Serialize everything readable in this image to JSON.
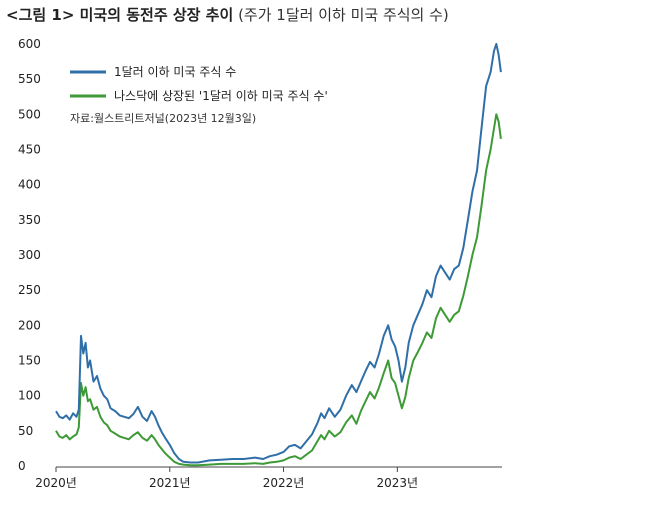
{
  "header": {
    "title": "<그림 1> 미국의 동전주 상장 추이",
    "subtitle": "(주가 1달러 이하 미국 주식의 수)"
  },
  "chart_data": {
    "type": "line",
    "title": "<그림 1> 미국의 동전주 상장 추이",
    "subtitle": "(주가 1달러 이하 미국 주식의 수)",
    "source": "자료:월스트리트저널(2023년 12월3일)",
    "xlabel": "",
    "ylabel": "",
    "ylim": [
      0,
      600
    ],
    "yticks": [
      0,
      50,
      100,
      150,
      200,
      250,
      300,
      350,
      400,
      450,
      500,
      550,
      600
    ],
    "xlim": [
      2020.0,
      2023.92
    ],
    "xticks": [
      {
        "value": 2020.0,
        "label": "2020년"
      },
      {
        "value": 2021.0,
        "label": "2021년"
      },
      {
        "value": 2022.0,
        "label": "2022년"
      },
      {
        "value": 2023.0,
        "label": "2023년"
      }
    ],
    "grid": false,
    "legend_position": "top-left",
    "series": [
      {
        "name": "1달러 이하 미국 주식 수",
        "color": "#2f6fa8",
        "points": [
          [
            2020.0,
            78
          ],
          [
            2020.03,
            70
          ],
          [
            2020.06,
            68
          ],
          [
            2020.09,
            72
          ],
          [
            2020.12,
            66
          ],
          [
            2020.15,
            75
          ],
          [
            2020.18,
            70
          ],
          [
            2020.2,
            80
          ],
          [
            2020.22,
            185
          ],
          [
            2020.24,
            160
          ],
          [
            2020.26,
            175
          ],
          [
            2020.28,
            140
          ],
          [
            2020.3,
            150
          ],
          [
            2020.33,
            120
          ],
          [
            2020.36,
            128
          ],
          [
            2020.39,
            110
          ],
          [
            2020.42,
            100
          ],
          [
            2020.45,
            95
          ],
          [
            2020.48,
            82
          ],
          [
            2020.52,
            78
          ],
          [
            2020.56,
            72
          ],
          [
            2020.6,
            70
          ],
          [
            2020.64,
            68
          ],
          [
            2020.68,
            74
          ],
          [
            2020.72,
            84
          ],
          [
            2020.76,
            70
          ],
          [
            2020.8,
            64
          ],
          [
            2020.84,
            78
          ],
          [
            2020.87,
            70
          ],
          [
            2020.9,
            58
          ],
          [
            2020.93,
            48
          ],
          [
            2020.96,
            40
          ],
          [
            2021.0,
            30
          ],
          [
            2021.04,
            18
          ],
          [
            2021.08,
            10
          ],
          [
            2021.12,
            6
          ],
          [
            2021.18,
            5
          ],
          [
            2021.25,
            5
          ],
          [
            2021.35,
            8
          ],
          [
            2021.45,
            9
          ],
          [
            2021.55,
            10
          ],
          [
            2021.65,
            10
          ],
          [
            2021.75,
            12
          ],
          [
            2021.82,
            10
          ],
          [
            2021.88,
            14
          ],
          [
            2021.94,
            16
          ],
          [
            2022.0,
            20
          ],
          [
            2022.05,
            28
          ],
          [
            2022.1,
            30
          ],
          [
            2022.15,
            25
          ],
          [
            2022.2,
            35
          ],
          [
            2022.25,
            45
          ],
          [
            2022.3,
            62
          ],
          [
            2022.33,
            75
          ],
          [
            2022.36,
            68
          ],
          [
            2022.4,
            82
          ],
          [
            2022.45,
            70
          ],
          [
            2022.5,
            80
          ],
          [
            2022.55,
            100
          ],
          [
            2022.6,
            115
          ],
          [
            2022.64,
            105
          ],
          [
            2022.68,
            120
          ],
          [
            2022.72,
            135
          ],
          [
            2022.76,
            148
          ],
          [
            2022.8,
            140
          ],
          [
            2022.84,
            160
          ],
          [
            2022.88,
            185
          ],
          [
            2022.92,
            200
          ],
          [
            2022.95,
            180
          ],
          [
            2022.98,
            170
          ],
          [
            2023.01,
            150
          ],
          [
            2023.04,
            120
          ],
          [
            2023.07,
            140
          ],
          [
            2023.1,
            175
          ],
          [
            2023.14,
            200
          ],
          [
            2023.18,
            215
          ],
          [
            2023.22,
            230
          ],
          [
            2023.26,
            250
          ],
          [
            2023.3,
            240
          ],
          [
            2023.34,
            270
          ],
          [
            2023.38,
            285
          ],
          [
            2023.42,
            275
          ],
          [
            2023.46,
            265
          ],
          [
            2023.5,
            280
          ],
          [
            2023.54,
            285
          ],
          [
            2023.58,
            310
          ],
          [
            2023.62,
            350
          ],
          [
            2023.66,
            390
          ],
          [
            2023.7,
            420
          ],
          [
            2023.74,
            480
          ],
          [
            2023.78,
            540
          ],
          [
            2023.82,
            560
          ],
          [
            2023.85,
            590
          ],
          [
            2023.87,
            600
          ],
          [
            2023.89,
            585
          ],
          [
            2023.91,
            560
          ]
        ]
      },
      {
        "name": "나스닥에 상장된 '1달러 이하 미국 주식 수'",
        "color": "#3e9a36",
        "points": [
          [
            2020.0,
            50
          ],
          [
            2020.03,
            42
          ],
          [
            2020.06,
            40
          ],
          [
            2020.09,
            44
          ],
          [
            2020.12,
            38
          ],
          [
            2020.15,
            42
          ],
          [
            2020.18,
            45
          ],
          [
            2020.2,
            55
          ],
          [
            2020.22,
            118
          ],
          [
            2020.24,
            100
          ],
          [
            2020.26,
            112
          ],
          [
            2020.28,
            92
          ],
          [
            2020.3,
            95
          ],
          [
            2020.33,
            80
          ],
          [
            2020.36,
            84
          ],
          [
            2020.39,
            70
          ],
          [
            2020.42,
            62
          ],
          [
            2020.45,
            58
          ],
          [
            2020.48,
            50
          ],
          [
            2020.52,
            46
          ],
          [
            2020.56,
            42
          ],
          [
            2020.6,
            40
          ],
          [
            2020.64,
            38
          ],
          [
            2020.68,
            44
          ],
          [
            2020.72,
            48
          ],
          [
            2020.76,
            40
          ],
          [
            2020.8,
            36
          ],
          [
            2020.84,
            44
          ],
          [
            2020.87,
            38
          ],
          [
            2020.9,
            30
          ],
          [
            2020.93,
            24
          ],
          [
            2020.96,
            18
          ],
          [
            2021.0,
            12
          ],
          [
            2021.04,
            6
          ],
          [
            2021.08,
            3
          ],
          [
            2021.12,
            2
          ],
          [
            2021.18,
            1
          ],
          [
            2021.25,
            1
          ],
          [
            2021.35,
            2
          ],
          [
            2021.45,
            3
          ],
          [
            2021.55,
            3
          ],
          [
            2021.65,
            3
          ],
          [
            2021.75,
            4
          ],
          [
            2021.82,
            3
          ],
          [
            2021.88,
            5
          ],
          [
            2021.94,
            6
          ],
          [
            2022.0,
            8
          ],
          [
            2022.05,
            12
          ],
          [
            2022.1,
            14
          ],
          [
            2022.15,
            10
          ],
          [
            2022.2,
            16
          ],
          [
            2022.25,
            22
          ],
          [
            2022.3,
            36
          ],
          [
            2022.33,
            44
          ],
          [
            2022.36,
            38
          ],
          [
            2022.4,
            50
          ],
          [
            2022.45,
            42
          ],
          [
            2022.5,
            48
          ],
          [
            2022.55,
            62
          ],
          [
            2022.6,
            72
          ],
          [
            2022.64,
            60
          ],
          [
            2022.68,
            78
          ],
          [
            2022.72,
            92
          ],
          [
            2022.76,
            105
          ],
          [
            2022.8,
            96
          ],
          [
            2022.84,
            112
          ],
          [
            2022.88,
            132
          ],
          [
            2022.92,
            150
          ],
          [
            2022.95,
            125
          ],
          [
            2022.98,
            118
          ],
          [
            2023.01,
            100
          ],
          [
            2023.04,
            82
          ],
          [
            2023.07,
            98
          ],
          [
            2023.1,
            125
          ],
          [
            2023.14,
            150
          ],
          [
            2023.18,
            162
          ],
          [
            2023.22,
            175
          ],
          [
            2023.26,
            190
          ],
          [
            2023.3,
            182
          ],
          [
            2023.34,
            210
          ],
          [
            2023.38,
            225
          ],
          [
            2023.42,
            215
          ],
          [
            2023.46,
            205
          ],
          [
            2023.5,
            215
          ],
          [
            2023.54,
            220
          ],
          [
            2023.58,
            242
          ],
          [
            2023.62,
            270
          ],
          [
            2023.66,
            300
          ],
          [
            2023.7,
            325
          ],
          [
            2023.74,
            370
          ],
          [
            2023.78,
            420
          ],
          [
            2023.82,
            450
          ],
          [
            2023.85,
            480
          ],
          [
            2023.87,
            500
          ],
          [
            2023.89,
            490
          ],
          [
            2023.91,
            465
          ]
        ]
      }
    ]
  }
}
